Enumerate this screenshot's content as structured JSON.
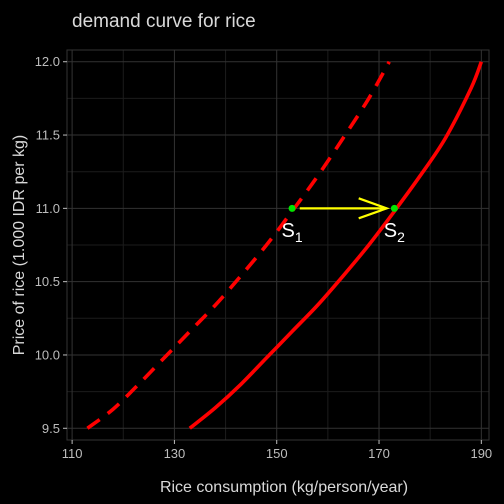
{
  "chart_data": {
    "type": "line",
    "title": "demand curve for rice",
    "xlabel": "Rice consumption (kg/person/year)",
    "ylabel": "Price of rice (1.000 IDR per kg)",
    "xlim": [
      109,
      191.5
    ],
    "ylim": [
      9.42,
      12.08
    ],
    "xticks": [
      110,
      130,
      150,
      170,
      190
    ],
    "yticks": [
      9.5,
      10.0,
      10.5,
      11.0,
      11.5,
      12.0
    ],
    "xtick_labels": [
      "110",
      "130",
      "150",
      "170",
      "190"
    ],
    "ytick_labels": [
      "9.5",
      "10.0",
      "10.5",
      "11.0",
      "11.5",
      "12.0"
    ],
    "grid": true,
    "series": [
      {
        "style": "dashed",
        "color": "#ff0000",
        "x": [
          113,
          118,
          123,
          128,
          133,
          138,
          143,
          148,
          153,
          158,
          163,
          168,
          172
        ],
        "y": [
          9.5,
          9.63,
          9.8,
          9.98,
          10.16,
          10.34,
          10.54,
          10.75,
          10.98,
          11.22,
          11.48,
          11.75,
          12.0
        ]
      },
      {
        "style": "solid",
        "color": "#ff0000",
        "x": [
          133,
          138,
          143,
          148,
          153,
          158,
          163,
          168,
          173,
          178,
          183,
          188,
          190
        ],
        "y": [
          9.5,
          9.64,
          9.8,
          9.98,
          10.16,
          10.34,
          10.54,
          10.75,
          10.98,
          11.22,
          11.48,
          11.82,
          12.0
        ]
      }
    ],
    "points": [
      {
        "x": 153,
        "y": 11.0,
        "color": "#00e600"
      },
      {
        "x": 173,
        "y": 11.0,
        "color": "#00e600"
      }
    ],
    "arrow": {
      "from": [
        154.5,
        11.0
      ],
      "to": [
        171.5,
        11.0
      ],
      "color": "#ffff00"
    },
    "annotations": [
      {
        "text": "S",
        "sub": "1",
        "x": 153,
        "y": 10.9
      },
      {
        "text": "S",
        "sub": "2",
        "x": 173,
        "y": 10.9
      }
    ],
    "colors": {
      "background": "#000000",
      "panel": "#000000",
      "grid_major": "#333333",
      "grid_minor": "#1c1c1c",
      "axis_text": "#bdbdbd",
      "title_text": "#d9d9d9"
    }
  }
}
